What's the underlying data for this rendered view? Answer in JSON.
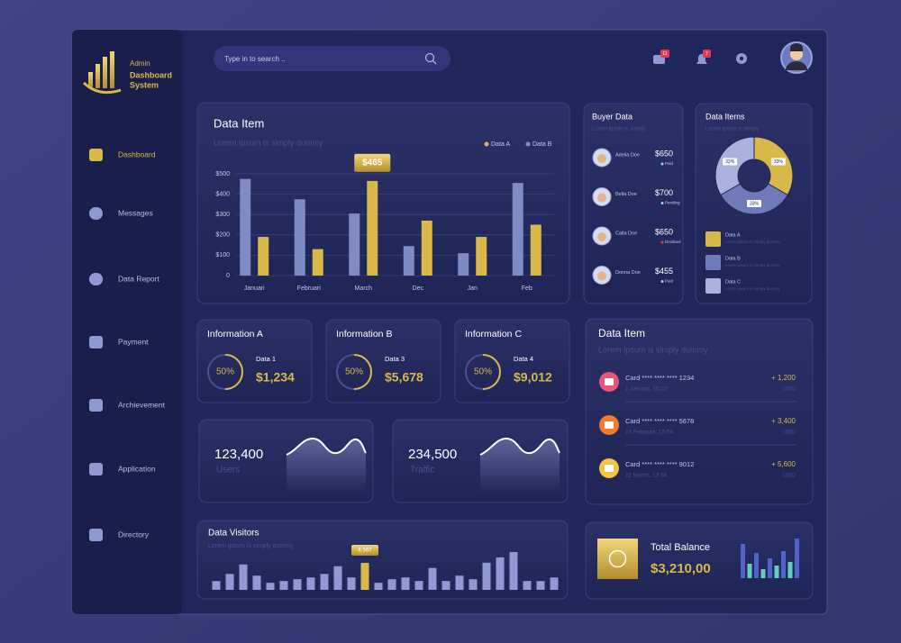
{
  "sidebar": {
    "logo": [
      "Admin",
      "Dashboard",
      "System"
    ],
    "menu": [
      "Dashboard",
      "Messages",
      "Data Report",
      "Payment",
      "Archievement",
      "Application",
      "Directory"
    ]
  },
  "topbar": {
    "search_placeholder": "Type in to search ..",
    "message_badge": "11",
    "notification_badge": "7"
  },
  "chart_data": [
    {
      "type": "bar",
      "title": "Data Item",
      "subtitle": "Lorem Ipsum is simply dummy",
      "categories": [
        "Januari",
        "Februari",
        "March",
        "Dec",
        "Jan",
        "Feb"
      ],
      "series": [
        {
          "name": "Data A",
          "color": "#d9b84a",
          "values": [
            190,
            130,
            465,
            270,
            190,
            250
          ],
          "value_labels": [
            null,
            null,
            "$465",
            null,
            null,
            null
          ]
        },
        {
          "name": "Data B",
          "color": "#7f8bc4",
          "values": [
            475,
            375,
            305,
            145,
            110,
            455
          ]
        }
      ],
      "ylim": [
        0,
        500
      ],
      "yticks": [
        0,
        {
          "value": 100,
          "label": "$100"
        },
        {
          "value": 200,
          "label": "$200"
        },
        {
          "value": 300,
          "label": "$300"
        },
        {
          "value": 400,
          "label": "$400"
        },
        {
          "value": 500,
          "label": "$500"
        }
      ],
      "grid": true
    },
    {
      "type": "pie",
      "title": "Data Items",
      "subtitle": "Lorem ipsum is simply",
      "categories": [
        "Data A",
        "Data B",
        "Data C"
      ],
      "values": [
        33,
        33,
        33
      ],
      "value_labels": [
        "33%",
        "33%",
        "33%"
      ],
      "colors": [
        "#d9b84a",
        "#6f7bb8",
        "#a9b2dd"
      ],
      "legend_notes": [
        "Lorem ipsum is simply dummy",
        "Lorem ipsum is simply dummy",
        "Lorem ipsum is simply dummy"
      ]
    },
    {
      "type": "bar",
      "title": "Data Visitors",
      "subtitle": "Lorem Ipsum is simply dummy",
      "values": [
        1500,
        2700,
        4300,
        2400,
        1200,
        1500,
        1800,
        2100,
        2700,
        4000,
        2100,
        4567,
        1200,
        1800,
        2100,
        1500,
        3700,
        1500,
        2400,
        1800,
        4600,
        5500,
        6400,
        1500,
        1500,
        2100
      ],
      "value_labels": [
        null,
        null,
        null,
        null,
        null,
        null,
        null,
        null,
        null,
        null,
        null,
        "4,567",
        null,
        null,
        null,
        null,
        null,
        null,
        null,
        null,
        null,
        null,
        null,
        null,
        null,
        null
      ],
      "colors": [
        "#8f9ad4",
        "#8f9ad4",
        "#8f9ad4",
        "#8f9ad4",
        "#8f9ad4",
        "#8f9ad4",
        "#8f9ad4",
        "#8f9ad4",
        "#8f9ad4",
        "#8f9ad4",
        "#8f9ad4",
        "#d9b84a",
        "#8f9ad4",
        "#8f9ad4",
        "#8f9ad4",
        "#8f9ad4",
        "#8f9ad4",
        "#8f9ad4",
        "#8f9ad4",
        "#8f9ad4",
        "#8f9ad4",
        "#8f9ad4",
        "#8f9ad4",
        "#8f9ad4",
        "#8f9ad4",
        "#8f9ad4"
      ]
    },
    {
      "type": "bar",
      "values": [
        38,
        16,
        28,
        10,
        22,
        14,
        30,
        18,
        44
      ],
      "colors": [
        "#4f63c9",
        "#5fd0c0",
        "#4f63c9",
        "#5fd0c0",
        "#4f63c9",
        "#5fd0c0",
        "#4f63c9",
        "#5fd0c0",
        "#4f63c9"
      ]
    }
  ],
  "buyer_data": {
    "title": "Buyer Data",
    "subtitle": "Lorem ipsum is simply",
    "rows": [
      {
        "name": "Adelia Doe",
        "amount": "$650",
        "status": "Paid"
      },
      {
        "name": "Bella Doe",
        "amount": "$700",
        "status": "Pending"
      },
      {
        "name": "Calla Doe",
        "amount": "$650",
        "status": "Declined"
      },
      {
        "name": "Donna Doe",
        "amount": "$455",
        "status": "Paid"
      }
    ]
  },
  "info_cards": [
    {
      "title": "Information A",
      "percent": 50,
      "percent_label": "50%",
      "label": "Data 1",
      "amount": "$1,234"
    },
    {
      "title": "Information B",
      "percent": 50,
      "percent_label": "50%",
      "label": "Data 3",
      "amount": "$5,678"
    },
    {
      "title": "Information C",
      "percent": 50,
      "percent_label": "50%",
      "label": "Data 4",
      "amount": "$9,012"
    }
  ],
  "stats": [
    {
      "value": "123,400",
      "label": "Users"
    },
    {
      "value": "234,500",
      "label": "Traffic"
    }
  ],
  "transactions": {
    "title": "Data Item",
    "subtitle": "Lorem Ipsum is simply dummy",
    "rows": [
      {
        "card": "Card **** **** **** 1234",
        "date": "1 Januari, 15:23",
        "amount": "+ 1,200",
        "currency": "USD"
      },
      {
        "card": "Card **** **** **** 5678",
        "date": "10 Februari, 15:54",
        "amount": "+ 3,400",
        "currency": "USD"
      },
      {
        "card": "Card **** **** **** 9012",
        "date": "11 March, 13:56",
        "amount": "+ 5,600",
        "currency": "USD"
      }
    ]
  },
  "balance": {
    "title": "Total Balance",
    "amount": "$3,210,00"
  }
}
